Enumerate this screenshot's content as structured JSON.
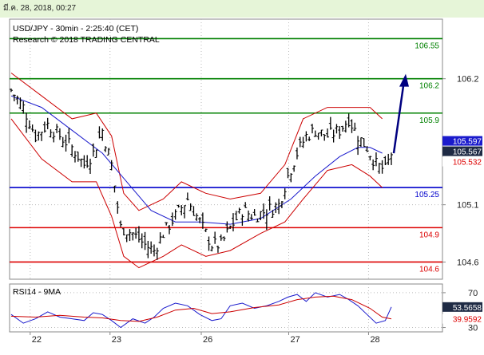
{
  "datetime": "มี.ค. 28, 2018, 00:27",
  "colors": {
    "candles": "#000000",
    "bollinger": "#cc0000",
    "moving_average": "#1a1acc",
    "support_resistance_green": "#008000",
    "pivot_blue": "#0000cc",
    "support_red": "#dd0000",
    "forecast_arrow": "#000080",
    "rsi": "#1a1acc",
    "rsi_ma": "#cc0000"
  },
  "chart_data": [
    {
      "type": "candlestick",
      "header": [
        "USD/JPY - 30min - 2:25:40 (CET)",
        "Research © 2018 TRADING CENTRAL"
      ],
      "x_tick_labels": [
        "22",
        "23",
        "26",
        "27",
        "28"
      ],
      "y_ticks": [
        104.6,
        105.1,
        106.2
      ],
      "y_tick_labels": [
        "104.6",
        "105.1",
        "106.2"
      ],
      "ylim": [
        104.45,
        106.72
      ],
      "levels": [
        {
          "value": 106.55,
          "label": "106.55",
          "color": "#008000"
        },
        {
          "value": 106.2,
          "label": "106.2",
          "color": "#008000"
        },
        {
          "value": 105.9,
          "label": "105.9",
          "color": "#008000"
        },
        {
          "value": 105.25,
          "label": "105.25",
          "color": "#0000cc"
        },
        {
          "value": 104.9,
          "label": "104.9",
          "color": "#dd0000"
        },
        {
          "value": 104.6,
          "label": "104.6",
          "color": "#dd0000"
        }
      ],
      "price_badges": [
        {
          "value": 105.597,
          "label": "105.597",
          "style": "blue"
        },
        {
          "value": 105.567,
          "label": "105.567",
          "style": "dark"
        },
        {
          "value": 105.532,
          "label": "105.532",
          "style": "red"
        }
      ],
      "forecast_target": 106.2,
      "close_path": [
        {
          "x": 0,
          "close": 106.1
        },
        {
          "x": 4,
          "close": 105.95
        },
        {
          "x": 8,
          "close": 105.7
        },
        {
          "x": 12,
          "close": 105.8
        },
        {
          "x": 16,
          "close": 105.7
        },
        {
          "x": 20,
          "close": 105.6
        },
        {
          "x": 24,
          "close": 105.45
        },
        {
          "x": 27,
          "close": 105.55
        },
        {
          "x": 30,
          "close": 105.75
        },
        {
          "x": 33,
          "close": 105.45
        },
        {
          "x": 36,
          "close": 104.9
        },
        {
          "x": 40,
          "close": 104.85
        },
        {
          "x": 44,
          "close": 104.75
        },
        {
          "x": 47,
          "close": 104.7
        },
        {
          "x": 50,
          "close": 104.85
        },
        {
          "x": 54,
          "close": 105.0
        },
        {
          "x": 58,
          "close": 105.15
        },
        {
          "x": 62,
          "close": 104.95
        },
        {
          "x": 66,
          "close": 104.75
        },
        {
          "x": 69,
          "close": 104.75
        },
        {
          "x": 72,
          "close": 104.9
        },
        {
          "x": 76,
          "close": 105.05
        },
        {
          "x": 80,
          "close": 105.0
        },
        {
          "x": 84,
          "close": 105.05
        },
        {
          "x": 88,
          "close": 105.1
        },
        {
          "x": 91,
          "close": 105.35
        },
        {
          "x": 94,
          "close": 105.55
        },
        {
          "x": 97,
          "close": 105.7
        },
        {
          "x": 100,
          "close": 105.75
        },
        {
          "x": 104,
          "close": 105.7
        },
        {
          "x": 108,
          "close": 105.75
        },
        {
          "x": 111,
          "close": 105.85
        },
        {
          "x": 114,
          "close": 105.7
        },
        {
          "x": 117,
          "close": 105.6
        },
        {
          "x": 120,
          "close": 105.45
        },
        {
          "x": 123,
          "close": 105.4
        },
        {
          "x": 125,
          "close": 105.55
        }
      ],
      "bollinger_upper": [
        {
          "x": 0,
          "value": 106.25
        },
        {
          "x": 10,
          "value": 106.05
        },
        {
          "x": 20,
          "value": 105.85
        },
        {
          "x": 28,
          "value": 105.9
        },
        {
          "x": 33,
          "value": 105.7
        },
        {
          "x": 37,
          "value": 105.2
        },
        {
          "x": 42,
          "value": 105.05
        },
        {
          "x": 50,
          "value": 105.15
        },
        {
          "x": 56,
          "value": 105.3
        },
        {
          "x": 64,
          "value": 105.2
        },
        {
          "x": 72,
          "value": 105.15
        },
        {
          "x": 82,
          "value": 105.2
        },
        {
          "x": 90,
          "value": 105.45
        },
        {
          "x": 96,
          "value": 105.85
        },
        {
          "x": 104,
          "value": 105.95
        },
        {
          "x": 112,
          "value": 105.95
        },
        {
          "x": 118,
          "value": 105.95
        },
        {
          "x": 122,
          "value": 105.85
        }
      ],
      "bollinger_lower": [
        {
          "x": 0,
          "value": 105.85
        },
        {
          "x": 10,
          "value": 105.5
        },
        {
          "x": 20,
          "value": 105.3
        },
        {
          "x": 28,
          "value": 105.3
        },
        {
          "x": 33,
          "value": 105.0
        },
        {
          "x": 37,
          "value": 104.65
        },
        {
          "x": 42,
          "value": 104.55
        },
        {
          "x": 50,
          "value": 104.65
        },
        {
          "x": 56,
          "value": 104.75
        },
        {
          "x": 64,
          "value": 104.65
        },
        {
          "x": 72,
          "value": 104.7
        },
        {
          "x": 82,
          "value": 104.85
        },
        {
          "x": 90,
          "value": 104.95
        },
        {
          "x": 96,
          "value": 105.15
        },
        {
          "x": 104,
          "value": 105.4
        },
        {
          "x": 112,
          "value": 105.45
        },
        {
          "x": 118,
          "value": 105.35
        },
        {
          "x": 122,
          "value": 105.25
        }
      ],
      "moving_average": [
        {
          "x": 0,
          "value": 106.05
        },
        {
          "x": 10,
          "value": 105.95
        },
        {
          "x": 20,
          "value": 105.75
        },
        {
          "x": 30,
          "value": 105.55
        },
        {
          "x": 38,
          "value": 105.3
        },
        {
          "x": 46,
          "value": 105.05
        },
        {
          "x": 54,
          "value": 104.95
        },
        {
          "x": 62,
          "value": 104.95
        },
        {
          "x": 72,
          "value": 104.93
        },
        {
          "x": 82,
          "value": 104.98
        },
        {
          "x": 92,
          "value": 105.15
        },
        {
          "x": 100,
          "value": 105.35
        },
        {
          "x": 108,
          "value": 105.52
        },
        {
          "x": 114,
          "value": 105.6
        },
        {
          "x": 118,
          "value": 105.6
        },
        {
          "x": 122,
          "value": 105.55
        }
      ]
    },
    {
      "type": "line",
      "title": "RSI14 - 9MA",
      "y_ticks": [
        30,
        70
      ],
      "y_tick_labels": [
        "30",
        "70"
      ],
      "ylim": [
        25,
        80
      ],
      "badges": [
        {
          "value": 53.5658,
          "label": "53.5658",
          "style": "dark"
        },
        {
          "value": 39.9592,
          "label": "39.9592",
          "style": "red"
        }
      ],
      "series": [
        {
          "name": "RSI14",
          "color": "#1a1acc",
          "points": [
            {
              "x": 0,
              "value": 45
            },
            {
              "x": 4,
              "value": 35
            },
            {
              "x": 8,
              "value": 40
            },
            {
              "x": 12,
              "value": 48
            },
            {
              "x": 16,
              "value": 42
            },
            {
              "x": 20,
              "value": 40
            },
            {
              "x": 24,
              "value": 38
            },
            {
              "x": 27,
              "value": 47
            },
            {
              "x": 30,
              "value": 45
            },
            {
              "x": 33,
              "value": 38
            },
            {
              "x": 36,
              "value": 30
            },
            {
              "x": 40,
              "value": 40
            },
            {
              "x": 44,
              "value": 35
            },
            {
              "x": 47,
              "value": 42
            },
            {
              "x": 50,
              "value": 52
            },
            {
              "x": 54,
              "value": 58
            },
            {
              "x": 58,
              "value": 55
            },
            {
              "x": 62,
              "value": 45
            },
            {
              "x": 66,
              "value": 38
            },
            {
              "x": 69,
              "value": 40
            },
            {
              "x": 72,
              "value": 55
            },
            {
              "x": 76,
              "value": 58
            },
            {
              "x": 80,
              "value": 52
            },
            {
              "x": 84,
              "value": 55
            },
            {
              "x": 88,
              "value": 60
            },
            {
              "x": 91,
              "value": 65
            },
            {
              "x": 94,
              "value": 68
            },
            {
              "x": 97,
              "value": 60
            },
            {
              "x": 100,
              "value": 70
            },
            {
              "x": 104,
              "value": 65
            },
            {
              "x": 108,
              "value": 68
            },
            {
              "x": 111,
              "value": 62
            },
            {
              "x": 114,
              "value": 55
            },
            {
              "x": 117,
              "value": 45
            },
            {
              "x": 120,
              "value": 35
            },
            {
              "x": 123,
              "value": 38
            },
            {
              "x": 125,
              "value": 53.5658
            }
          ]
        },
        {
          "name": "9MA",
          "color": "#cc0000",
          "points": [
            {
              "x": 0,
              "value": 43
            },
            {
              "x": 8,
              "value": 42
            },
            {
              "x": 16,
              "value": 44
            },
            {
              "x": 24,
              "value": 42
            },
            {
              "x": 30,
              "value": 41
            },
            {
              "x": 36,
              "value": 38
            },
            {
              "x": 42,
              "value": 37
            },
            {
              "x": 48,
              "value": 42
            },
            {
              "x": 54,
              "value": 50
            },
            {
              "x": 60,
              "value": 52
            },
            {
              "x": 66,
              "value": 46
            },
            {
              "x": 72,
              "value": 48
            },
            {
              "x": 80,
              "value": 53
            },
            {
              "x": 88,
              "value": 56
            },
            {
              "x": 94,
              "value": 62
            },
            {
              "x": 100,
              "value": 65
            },
            {
              "x": 106,
              "value": 66
            },
            {
              "x": 112,
              "value": 62
            },
            {
              "x": 118,
              "value": 52
            },
            {
              "x": 122,
              "value": 42
            },
            {
              "x": 125,
              "value": 39.9592
            }
          ]
        }
      ]
    }
  ]
}
